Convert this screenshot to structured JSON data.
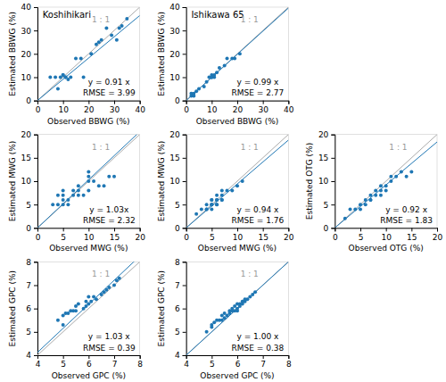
{
  "chart_data": [
    {
      "type": "scatter",
      "title": "Koshihikari",
      "xlabel": "Observed BBWG (%)",
      "ylabel": "Estimated BBWG (%)",
      "xlim": [
        0,
        40
      ],
      "ylim": [
        0,
        40
      ],
      "xticks": [
        0,
        10,
        20,
        30,
        40
      ],
      "yticks": [
        0,
        10,
        20,
        30,
        40
      ],
      "slope": 0.91,
      "annotations": [
        "1 : 1",
        "y = 0.91 x",
        "RMSE = 3.99"
      ],
      "x": [
        5,
        7,
        8,
        9,
        10,
        10,
        11,
        11,
        12,
        13,
        15,
        17,
        18,
        21,
        23,
        24,
        25,
        27,
        29,
        31,
        32,
        33,
        35
      ],
      "values": [
        10,
        10,
        5,
        10,
        11,
        11,
        10,
        10,
        9,
        10,
        18,
        18,
        10,
        20,
        24,
        25,
        26,
        31,
        28,
        26,
        31,
        32,
        35
      ]
    },
    {
      "type": "scatter",
      "title": "Ishikawa 65",
      "xlabel": "Observed BBWG (%)",
      "ylabel": "Estimated BBWG (%)",
      "xlim": [
        0,
        40
      ],
      "ylim": [
        0,
        40
      ],
      "xticks": [
        0,
        10,
        20,
        30,
        40
      ],
      "yticks": [
        0,
        10,
        20,
        30,
        40
      ],
      "slope": 0.99,
      "annotations": [
        "1 : 1",
        "y = 0.99 x",
        "RMSE = 2.77"
      ],
      "x": [
        2,
        2,
        3,
        3,
        4,
        5,
        7,
        8,
        9,
        10,
        10,
        10,
        10,
        11,
        11,
        12,
        13,
        15,
        16,
        18,
        19,
        21
      ],
      "values": [
        2,
        3,
        2,
        3,
        4,
        5,
        6,
        8,
        10,
        10,
        10,
        10,
        11,
        11,
        10,
        12,
        14,
        15,
        18,
        18,
        18,
        20
      ]
    },
    {
      "type": "scatter",
      "xlabel": "Observed MWG (%)",
      "ylabel": "Estimated MWG (%)",
      "xlim": [
        0,
        20
      ],
      "ylim": [
        0,
        20
      ],
      "xticks": [
        0,
        5,
        10,
        15,
        20
      ],
      "yticks": [
        0,
        5,
        10,
        15,
        20
      ],
      "slope": 1.03,
      "annotations": [
        "1 : 1",
        "y = 1.03x",
        "RMSE = 2.32"
      ],
      "x": [
        3,
        4,
        4,
        5,
        5,
        5,
        5,
        6,
        6,
        7,
        7,
        8,
        8,
        8,
        9,
        10,
        10,
        10,
        10,
        11,
        12,
        13,
        14,
        15
      ],
      "values": [
        5,
        5,
        7,
        5,
        6,
        7,
        8,
        5,
        6,
        7,
        8,
        7,
        8,
        9,
        7,
        8,
        10,
        11,
        12,
        10,
        9,
        9,
        11,
        11
      ]
    },
    {
      "type": "scatter",
      "xlabel": "Observed MWG (%)",
      "ylabel": "Estimated MWG (%)",
      "xlim": [
        0,
        20
      ],
      "ylim": [
        0,
        20
      ],
      "xticks": [
        0,
        5,
        10,
        15,
        20
      ],
      "yticks": [
        0,
        5,
        10,
        15,
        20
      ],
      "slope": 0.94,
      "annotations": [
        "1 : 1",
        "y = 0.94 x",
        "RMSE = 1.76"
      ],
      "x": [
        2,
        3,
        4,
        4,
        4,
        5,
        5,
        5,
        5,
        5,
        5,
        6,
        6,
        6,
        6,
        6,
        7,
        7,
        7,
        7,
        8,
        9,
        10,
        11
      ],
      "values": [
        3,
        4,
        4,
        4,
        5,
        4,
        5,
        5,
        5,
        6,
        6,
        5,
        5,
        6,
        6,
        7,
        6,
        6,
        7,
        8,
        8,
        8,
        9,
        10
      ]
    },
    {
      "type": "scatter",
      "xlabel": "Observed OTG (%)",
      "ylabel": "Estimated OTG (%)",
      "xlim": [
        0,
        20
      ],
      "ylim": [
        0,
        20
      ],
      "xticks": [
        0,
        5,
        10,
        15,
        20
      ],
      "yticks": [
        0,
        5,
        10,
        15,
        20
      ],
      "slope": 0.92,
      "annotations": [
        "1 : 1",
        "y = 0.92 x",
        "RMSE = 1.83"
      ],
      "x": [
        2,
        3,
        4,
        5,
        5,
        6,
        6,
        7,
        7,
        7,
        8,
        8,
        9,
        9,
        9,
        10,
        10,
        11,
        11,
        12,
        13,
        14,
        15
      ],
      "values": [
        2,
        4,
        4,
        4,
        5,
        5,
        6,
        6,
        6,
        7,
        7,
        8,
        7,
        8,
        9,
        8,
        9,
        10,
        11,
        11,
        12,
        11,
        12
      ]
    },
    {
      "type": "scatter",
      "xlabel": "Observed GPC (%)",
      "ylabel": "Estimated GPC (%)",
      "xlim": [
        4,
        8
      ],
      "ylim": [
        4,
        8
      ],
      "xticks": [
        4,
        5,
        6,
        7,
        8
      ],
      "yticks": [
        4,
        5,
        6,
        7,
        8
      ],
      "slope": 1.03,
      "annotations": [
        "1 : 1",
        "y = 1.03 x",
        "RMSE = 0.39"
      ],
      "x": [
        4.8,
        5.0,
        5.0,
        5.1,
        5.2,
        5.3,
        5.4,
        5.5,
        5.5,
        5.6,
        5.8,
        5.9,
        5.9,
        6.0,
        6.0,
        6.1,
        6.2,
        6.3,
        6.5,
        6.6,
        6.7,
        6.8,
        7.0,
        7.1,
        7.2
      ],
      "values": [
        5.5,
        5.3,
        5.7,
        5.8,
        5.8,
        5.9,
        5.9,
        5.9,
        6.1,
        6.2,
        6.0,
        6.1,
        6.3,
        6.2,
        6.5,
        6.3,
        6.5,
        6.4,
        6.6,
        6.7,
        6.8,
        6.9,
        7.0,
        7.2,
        7.3
      ]
    },
    {
      "type": "scatter",
      "xlabel": "Observed GPC (%)",
      "ylabel": "Estimated GPC (%)",
      "xlim": [
        4,
        8
      ],
      "ylim": [
        4,
        8
      ],
      "xticks": [
        4,
        5,
        6,
        7,
        8
      ],
      "yticks": [
        4,
        5,
        6,
        7,
        8
      ],
      "slope": 1.0,
      "annotations": [
        "1 : 1",
        "y = 1.00 x",
        "RMSE = 0.38"
      ],
      "x": [
        4.8,
        5.0,
        5.0,
        5.1,
        5.2,
        5.3,
        5.4,
        5.4,
        5.5,
        5.5,
        5.6,
        5.7,
        5.7,
        5.8,
        5.8,
        5.9,
        5.9,
        6.0,
        6.0,
        6.0,
        6.1,
        6.1,
        6.2,
        6.2,
        6.3,
        6.3,
        6.4,
        6.5,
        6.6,
        6.7
      ],
      "values": [
        5.0,
        5.2,
        5.3,
        5.4,
        5.5,
        5.5,
        5.5,
        5.7,
        5.6,
        5.8,
        5.7,
        5.8,
        5.9,
        5.9,
        6.0,
        5.9,
        6.1,
        5.9,
        6.0,
        6.2,
        6.1,
        6.2,
        6.2,
        6.3,
        6.3,
        6.4,
        6.4,
        6.5,
        6.6,
        6.7
      ]
    }
  ]
}
